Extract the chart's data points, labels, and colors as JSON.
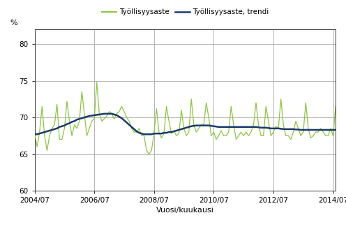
{
  "ylabel": "%",
  "xlabel": "Vuosi/kuukausi",
  "legend_labels": [
    "Työllisyysaste",
    "Työllisyysaste, trendi"
  ],
  "line_color": "#8dc63f",
  "trend_color": "#1a3a6b",
  "ylim": [
    60,
    82
  ],
  "yticks": [
    60,
    65,
    70,
    75,
    80
  ],
  "xtick_labels": [
    "2004/07",
    "2006/07",
    "2008/07",
    "2010/07",
    "2012/07",
    "2014/07"
  ],
  "background_color": "#ffffff",
  "grid_color": "#aaaaaa",
  "employment_rate": [
    67.8,
    66.0,
    68.0,
    71.5,
    67.5,
    65.5,
    67.5,
    68.5,
    69.0,
    71.8,
    67.0,
    67.0,
    68.5,
    72.2,
    69.5,
    67.5,
    69.0,
    68.5,
    69.5,
    73.5,
    70.5,
    67.5,
    68.5,
    69.5,
    69.8,
    74.8,
    70.5,
    69.5,
    69.8,
    70.2,
    70.8,
    70.5,
    69.8,
    70.5,
    70.8,
    71.5,
    70.8,
    70.0,
    69.5,
    68.5,
    68.0,
    68.0,
    68.5,
    67.5,
    67.5,
    65.5,
    65.0,
    65.5,
    67.8,
    71.2,
    68.0,
    67.2,
    67.8,
    71.5,
    69.5,
    67.8,
    68.2,
    67.5,
    67.8,
    71.0,
    68.5,
    67.5,
    68.0,
    72.5,
    69.0,
    68.0,
    68.5,
    69.0,
    69.0,
    72.0,
    70.0,
    67.5,
    68.0,
    67.0,
    67.5,
    68.2,
    67.5,
    67.5,
    68.0,
    71.5,
    69.0,
    67.0,
    67.5,
    68.0,
    67.5,
    68.0,
    67.5,
    68.0,
    69.0,
    72.0,
    69.0,
    67.5,
    67.5,
    71.5,
    69.5,
    67.5,
    68.0,
    68.8,
    68.5,
    72.5,
    69.0,
    67.5,
    67.5,
    67.0,
    68.0,
    69.5,
    68.5,
    67.5,
    68.0,
    72.0,
    68.5,
    67.2,
    67.5,
    68.0,
    68.0,
    68.5,
    68.0,
    67.5,
    67.5,
    68.5,
    67.5,
    71.5
  ],
  "trend": [
    67.7,
    67.7,
    67.8,
    67.9,
    68.0,
    68.1,
    68.2,
    68.3,
    68.4,
    68.5,
    68.7,
    68.8,
    68.9,
    69.1,
    69.2,
    69.4,
    69.5,
    69.7,
    69.8,
    69.9,
    70.0,
    70.1,
    70.2,
    70.25,
    70.3,
    70.35,
    70.4,
    70.45,
    70.5,
    70.5,
    70.5,
    70.5,
    70.4,
    70.3,
    70.1,
    69.9,
    69.6,
    69.3,
    69.0,
    68.7,
    68.4,
    68.1,
    67.9,
    67.8,
    67.7,
    67.7,
    67.7,
    67.7,
    67.8,
    67.8,
    67.8,
    67.8,
    67.9,
    67.9,
    68.0,
    68.0,
    68.1,
    68.2,
    68.3,
    68.4,
    68.5,
    68.6,
    68.7,
    68.8,
    68.85,
    68.9,
    68.9,
    68.9,
    68.9,
    68.9,
    68.9,
    68.85,
    68.8,
    68.75,
    68.7,
    68.7,
    68.7,
    68.7,
    68.7,
    68.7,
    68.7,
    68.7,
    68.7,
    68.7,
    68.7,
    68.7,
    68.7,
    68.7,
    68.7,
    68.7,
    68.65,
    68.6,
    68.6,
    68.6,
    68.55,
    68.5,
    68.5,
    68.5,
    68.5,
    68.45,
    68.4,
    68.4,
    68.4,
    68.4,
    68.4,
    68.35,
    68.35,
    68.3,
    68.3,
    68.3,
    68.3,
    68.3,
    68.3,
    68.3,
    68.3,
    68.3,
    68.3,
    68.3,
    68.3,
    68.3,
    68.3,
    68.3
  ]
}
